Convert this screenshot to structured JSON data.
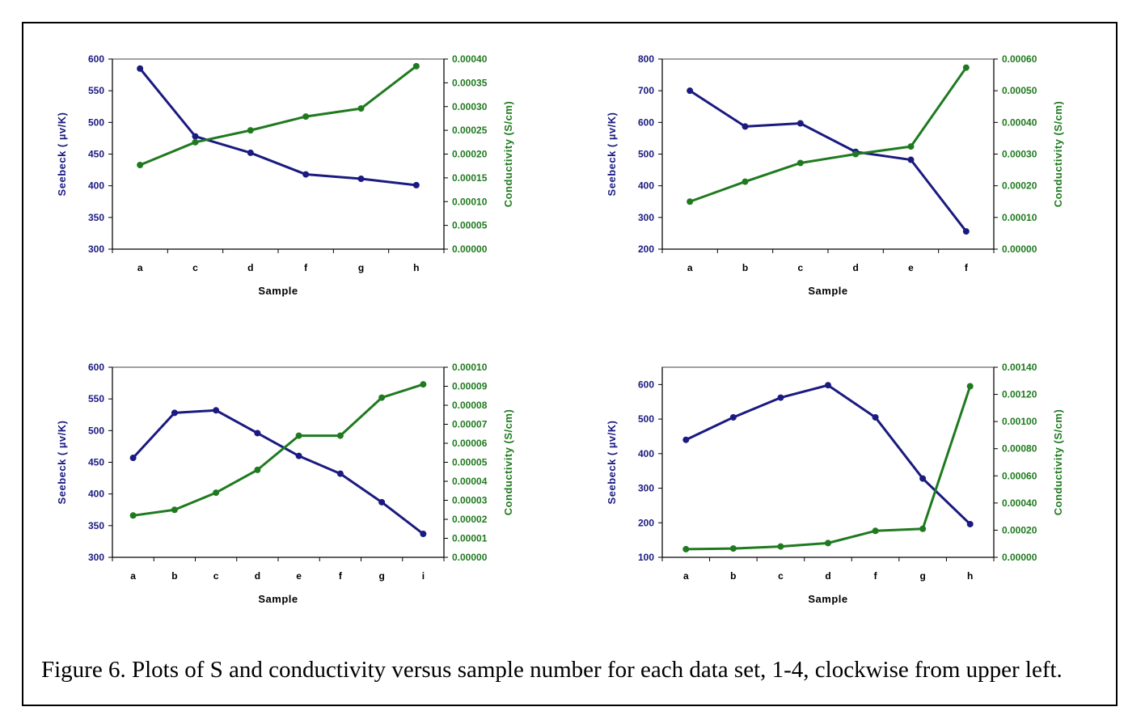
{
  "colors": {
    "seebeck": "#1a1a80",
    "conductivity": "#1f7a1f",
    "axis": "#000000",
    "border": "#808080"
  },
  "caption": "Figure 6.  Plots of S and conductivity versus sample number for each data set, 1-4, clockwise from upper left.",
  "chart_data": [
    {
      "type": "line",
      "title": "",
      "xlabel": "Sample",
      "ylabel": "Seebeck ( µv/K)",
      "y2label": "Conductivity (S/cm)",
      "categories": [
        "a",
        "c",
        "d",
        "f",
        "g",
        "h"
      ],
      "ylim": [
        300,
        600
      ],
      "yticks": [
        "300",
        "350",
        "400",
        "450",
        "500",
        "550",
        "600"
      ],
      "y2lim": [
        0,
        0.0004
      ],
      "y2ticks": [
        "0.00000",
        "0.00005",
        "0.00010",
        "0.00015",
        "0.00020",
        "0.00025",
        "0.00030",
        "0.00035",
        "0.00040"
      ],
      "series": [
        {
          "name": "Seebeck",
          "axis": "left",
          "values": [
            585,
            478,
            452,
            418,
            411,
            401
          ]
        },
        {
          "name": "Conductivity",
          "axis": "right",
          "values": [
            0.000177,
            0.000225,
            0.00025,
            0.000279,
            0.000296,
            0.000385
          ]
        }
      ]
    },
    {
      "type": "line",
      "title": "",
      "xlabel": "Sample",
      "ylabel": "Seebeck ( µv/K)",
      "y2label": "Conductivity (S/cm)",
      "categories": [
        "a",
        "b",
        "c",
        "d",
        "e",
        "f"
      ],
      "ylim": [
        200,
        800
      ],
      "yticks": [
        "200",
        "300",
        "400",
        "500",
        "600",
        "700",
        "800"
      ],
      "y2lim": [
        0,
        0.0006
      ],
      "y2ticks": [
        "0.00000",
        "0.00010",
        "0.00020",
        "0.00030",
        "0.00040",
        "0.00050",
        "0.00060"
      ],
      "series": [
        {
          "name": "Seebeck",
          "axis": "left",
          "values": [
            700,
            587,
            597,
            507,
            482,
            256
          ]
        },
        {
          "name": "Conductivity",
          "axis": "right",
          "values": [
            0.00015,
            0.000213,
            0.000272,
            0.0003,
            0.000324,
            0.000573
          ]
        }
      ]
    },
    {
      "type": "line",
      "title": "",
      "xlabel": "Sample",
      "ylabel": "Seebeck ( µv/K)",
      "y2label": "Conductivity (S/cm)",
      "categories": [
        "a",
        "b",
        "c",
        "d",
        "e",
        "f",
        "g",
        "i"
      ],
      "ylim": [
        300,
        600
      ],
      "yticks": [
        "300",
        "350",
        "400",
        "450",
        "500",
        "550",
        "600"
      ],
      "y2lim": [
        0,
        0.0001
      ],
      "y2ticks": [
        "0.00000",
        "0.00001",
        "0.00002",
        "0.00003",
        "0.00004",
        "0.00005",
        "0.00006",
        "0.00007",
        "0.00008",
        "0.00009",
        "0.00010"
      ],
      "series": [
        {
          "name": "Seebeck",
          "axis": "left",
          "values": [
            457,
            528,
            532,
            496,
            460,
            432,
            387,
            337
          ]
        },
        {
          "name": "Conductivity",
          "axis": "right",
          "values": [
            2.2e-05,
            2.5e-05,
            3.4e-05,
            4.6e-05,
            6.4e-05,
            6.4e-05,
            8.4e-05,
            9.1e-05
          ]
        }
      ]
    },
    {
      "type": "line",
      "title": "",
      "xlabel": "Sample",
      "ylabel": "Seebeck ( µv/K)",
      "y2label": "Conductivity (S/cm)",
      "categories": [
        "a",
        "b",
        "c",
        "d",
        "f",
        "g",
        "h"
      ],
      "ylim": [
        100,
        650
      ],
      "yticks": [
        "100",
        "200",
        "300",
        "400",
        "500",
        "600"
      ],
      "y2lim": [
        0,
        0.0014
      ],
      "y2ticks": [
        "0.00000",
        "0.00020",
        "0.00040",
        "0.00060",
        "0.00080",
        "0.00100",
        "0.00120",
        "0.00140"
      ],
      "series": [
        {
          "name": "Seebeck",
          "axis": "left",
          "values": [
            440,
            505,
            562,
            598,
            505,
            328,
            196
          ]
        },
        {
          "name": "Conductivity",
          "axis": "right",
          "values": [
            6e-05,
            6.5e-05,
            8e-05,
            0.000105,
            0.000195,
            0.00021,
            0.00126
          ]
        }
      ]
    }
  ]
}
